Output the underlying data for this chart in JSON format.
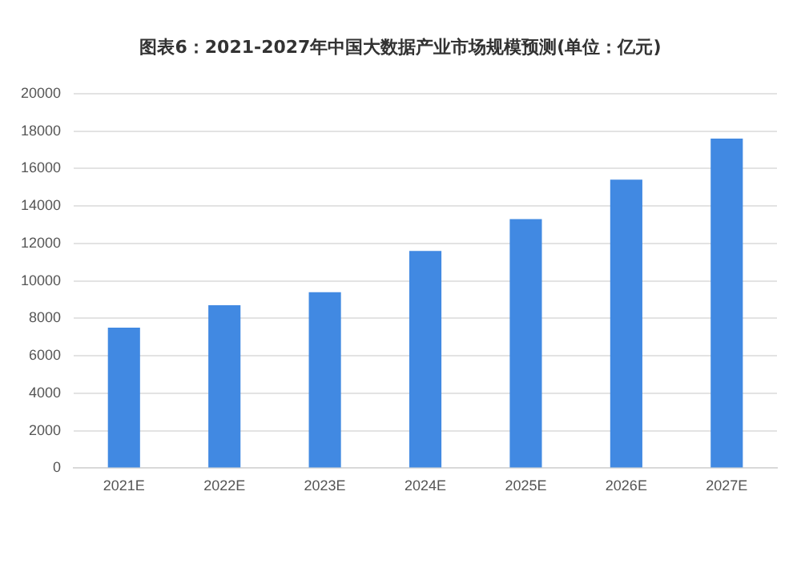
{
  "chart_data": {
    "type": "bar",
    "title": "图表6：2021-2027年中国大数据产业市场规模预测(单位：亿元)",
    "categories": [
      "2021E",
      "2022E",
      "2023E",
      "2024E",
      "2025E",
      "2026E",
      "2027E"
    ],
    "values": [
      7500,
      8700,
      9400,
      11600,
      13300,
      15400,
      17600
    ],
    "color": "#4189e2",
    "ylim": [
      0,
      20000
    ],
    "yticks": [
      0,
      2000,
      4000,
      6000,
      8000,
      10000,
      12000,
      14000,
      16000,
      18000,
      20000
    ],
    "grid": "y",
    "legend": false
  }
}
